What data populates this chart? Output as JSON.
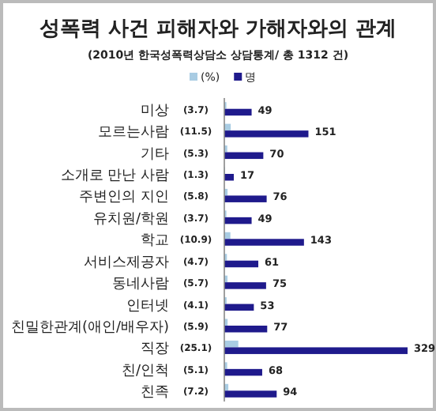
{
  "chart_data": {
    "type": "bar",
    "orientation": "horizontal",
    "title": "성폭력 사건 피해자와 가해자와의 관계",
    "subtitle": "(2010년 한국성폭력상담소 상담통계/ 총 1312 건)",
    "categories": [
      "미상",
      "모르는사람",
      "기타",
      "소개로 만난 사람",
      "주변인의 지인",
      "유치원/학원",
      "학교",
      "서비스제공자",
      "동네사람",
      "인터넷",
      "친밀한관계(애인/배우자)",
      "직장",
      "친/인척",
      "친족"
    ],
    "series": [
      {
        "name": "(%)",
        "color": "#a9cce3",
        "values": [
          3.7,
          11.5,
          5.3,
          1.3,
          5.8,
          3.7,
          10.9,
          4.7,
          5.7,
          4.1,
          5.9,
          25.1,
          5.1,
          7.2
        ],
        "value_labels": [
          "(3.7)",
          "(11.5)",
          "(5.3)",
          "(1.3)",
          "(5.8)",
          "(3.7)",
          "(10.9)",
          "(4.7)",
          "(5.7)",
          "(4.1)",
          "(5.9)",
          "(25.1)",
          "(5.1)",
          "(7.2)"
        ]
      },
      {
        "name": "명",
        "color": "#1f1a8c",
        "values": [
          49,
          151,
          70,
          17,
          76,
          49,
          143,
          61,
          75,
          53,
          77,
          329,
          68,
          94
        ],
        "data_labels": true
      }
    ],
    "legend": "top"
  }
}
